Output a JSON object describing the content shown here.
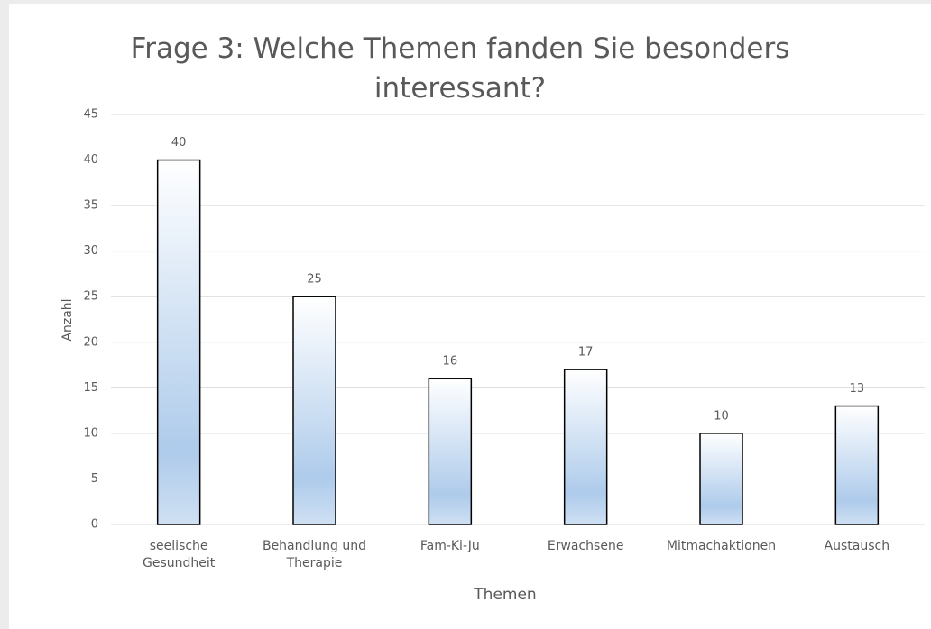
{
  "chart_data": {
    "type": "bar",
    "title": "Frage 3: Welche Themen fanden Sie besonders interessant?",
    "x_label": "Themen",
    "y_label": "Anzahl",
    "categories": [
      "seelische Gesundheit",
      "Behandlung und Therapie",
      "Fam-Ki-Ju",
      "Erwachsene",
      "Mitmachaktionen",
      "Austausch"
    ],
    "values": [
      40,
      25,
      16,
      17,
      10,
      13
    ],
    "color": "#aecbeb",
    "ylim": [
      0,
      45
    ],
    "yticks": [
      0,
      5,
      10,
      15,
      20,
      25,
      30,
      35,
      40,
      45
    ],
    "grid": true
  }
}
